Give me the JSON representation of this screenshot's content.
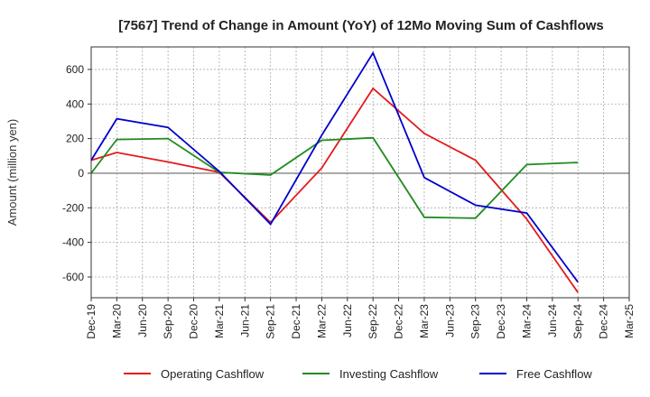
{
  "chart_data": {
    "type": "line",
    "title": "[7567]  Trend of Change in Amount (YoY) of 12Mo Moving Sum of Cashflows",
    "xlabel": "",
    "ylabel": "Amount (million yen)",
    "ylim": [
      -720,
      730
    ],
    "yticks": [
      -600,
      -400,
      -200,
      0,
      200,
      400,
      600
    ],
    "categories": [
      "Dec-19",
      "Mar-20",
      "Jun-20",
      "Sep-20",
      "Dec-20",
      "Mar-21",
      "Jun-21",
      "Sep-21",
      "Dec-21",
      "Mar-22",
      "Jun-22",
      "Sep-22",
      "Dec-22",
      "Mar-23",
      "Jun-23",
      "Sep-23",
      "Dec-23",
      "Mar-24",
      "Jun-24",
      "Sep-24",
      "Dec-24",
      "Mar-25"
    ],
    "series": [
      {
        "name": "Operating Cashflow",
        "color": "#e31a1c",
        "values": [
          75,
          120,
          null,
          65,
          null,
          5,
          null,
          -285,
          null,
          30,
          null,
          490,
          null,
          230,
          null,
          75,
          null,
          -265,
          null,
          -690,
          null,
          null
        ]
      },
      {
        "name": "Investing Cashflow",
        "color": "#228b22",
        "values": [
          0,
          195,
          null,
          200,
          null,
          5,
          null,
          -10,
          null,
          190,
          null,
          205,
          null,
          -255,
          null,
          -260,
          null,
          50,
          null,
          62,
          null,
          null
        ]
      },
      {
        "name": "Free Cashflow",
        "color": "#0000cc",
        "values": [
          75,
          315,
          null,
          265,
          null,
          10,
          null,
          -295,
          null,
          220,
          null,
          695,
          null,
          -25,
          null,
          -185,
          null,
          -230,
          null,
          -630,
          null,
          null
        ]
      }
    ],
    "grid": true,
    "legend_position": "bottom"
  }
}
